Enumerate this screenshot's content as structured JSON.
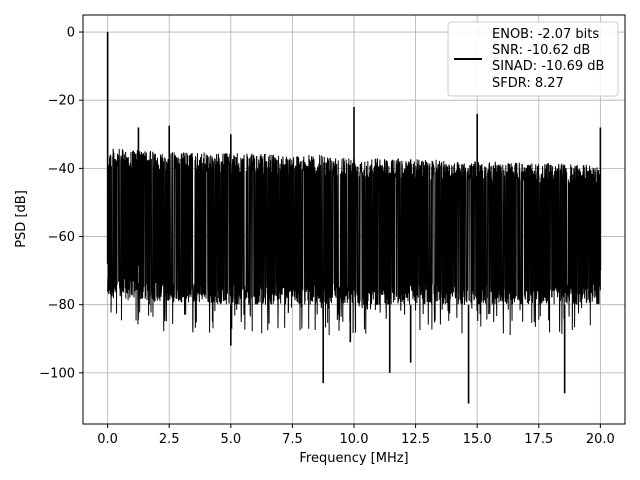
{
  "chart_data": {
    "type": "line",
    "title": "",
    "xlabel": "Frequency [MHz]",
    "ylabel": "PSD [dB]",
    "xlim": [
      -1.0,
      21.0
    ],
    "ylim": [
      -115,
      5
    ],
    "xticks": [
      0.0,
      2.5,
      5.0,
      7.5,
      10.0,
      12.5,
      15.0,
      17.5,
      20.0
    ],
    "xtick_labels": [
      "0.0",
      "2.5",
      "5.0",
      "7.5",
      "10.0",
      "12.5",
      "15.0",
      "17.5",
      "20.0"
    ],
    "yticks": [
      0,
      -20,
      -40,
      -60,
      -80,
      -100
    ],
    "ytick_labels": [
      "0",
      "−20",
      "−40",
      "−60",
      "−80",
      "−100"
    ],
    "grid": true,
    "legend_position": "top-right",
    "series_color": "#000000",
    "legend_lines": [
      "ENOB: -2.07 bits",
      "SNR: -10.62 dB",
      "SINAD: -10.69 dB",
      "SFDR: 8.27"
    ],
    "peaks": [
      {
        "x": 0.0,
        "y": 0
      },
      {
        "x": 1.25,
        "y": -28
      },
      {
        "x": 2.5,
        "y": -27.5
      },
      {
        "x": 5.0,
        "y": -30
      },
      {
        "x": 10.0,
        "y": -22
      },
      {
        "x": 15.0,
        "y": -24
      },
      {
        "x": 20.0,
        "y": -28
      }
    ],
    "deep_dips": [
      {
        "x": 8.75,
        "y": -103
      },
      {
        "x": 11.45,
        "y": -100
      },
      {
        "x": 14.65,
        "y": -109
      },
      {
        "x": 18.55,
        "y": -106
      },
      {
        "x": 12.3,
        "y": -97
      },
      {
        "x": 5.0,
        "y": -92
      },
      {
        "x": 9.85,
        "y": -91
      }
    ],
    "noise_envelope": {
      "x": [
        0.0,
        2.0,
        5.0,
        8.0,
        10.0,
        12.0,
        15.0,
        18.0,
        20.0
      ],
      "upper": [
        -34,
        -35,
        -35.5,
        -36,
        -36.5,
        -37,
        -38,
        -38.5,
        -39
      ],
      "lower": [
        -78,
        -79,
        -80,
        -80,
        -80,
        -80,
        -80,
        -80,
        -80
      ]
    }
  }
}
